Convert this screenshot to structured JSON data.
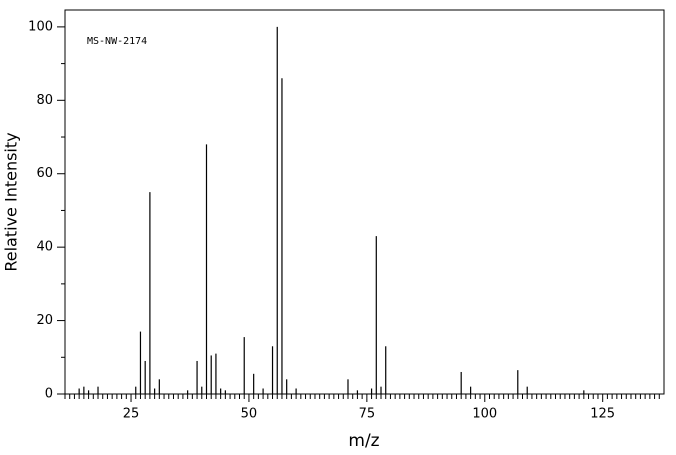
{
  "chart_data": {
    "type": "stem",
    "annotation": "MS-NW-2174",
    "xlabel": "m/z",
    "ylabel": "Relative Intensity",
    "x": [
      14,
      15,
      16,
      18,
      26,
      27,
      28,
      29,
      30,
      31,
      37,
      39,
      40,
      41,
      42,
      43,
      44,
      45,
      49,
      51,
      53,
      55,
      56,
      57,
      58,
      60,
      71,
      73,
      76,
      77,
      78,
      79,
      95,
      97,
      107,
      109,
      121
    ],
    "values": [
      1.5,
      2,
      1,
      2,
      2,
      17,
      9,
      55,
      1.5,
      4,
      1,
      9,
      2,
      68,
      10.5,
      11,
      1.5,
      1,
      15.5,
      5.5,
      1.5,
      13,
      100,
      86,
      4,
      1.5,
      4,
      1,
      1.5,
      43,
      2,
      13,
      6,
      2,
      6.5,
      2,
      1
    ],
    "color": "#000000",
    "xlim": [
      11,
      138
    ],
    "ylim": [
      0,
      104.6
    ],
    "xticks": [
      25,
      50,
      75,
      100,
      125
    ],
    "yticks": [
      0,
      20,
      40,
      60,
      80,
      100
    ],
    "xminorticks": [
      11,
      12,
      13,
      14,
      15,
      16,
      17,
      18,
      19,
      20,
      21,
      22,
      23,
      24,
      26,
      27,
      28,
      29,
      30,
      31,
      32,
      33,
      34,
      35,
      36,
      37,
      38,
      39,
      40,
      41,
      42,
      43,
      44,
      45,
      46,
      47,
      48,
      49,
      51,
      52,
      53,
      54,
      55,
      56,
      57,
      58,
      59,
      60,
      61,
      62,
      63,
      64,
      65,
      66,
      67,
      68,
      69,
      70,
      71,
      72,
      73,
      74,
      76,
      77,
      78,
      79,
      80,
      81,
      82,
      83,
      84,
      85,
      86,
      87,
      88,
      89,
      90,
      91,
      92,
      93,
      94,
      95,
      96,
      97,
      98,
      99,
      101,
      102,
      103,
      104,
      105,
      106,
      107,
      108,
      109,
      110,
      111,
      112,
      113,
      114,
      115,
      116,
      117,
      118,
      119,
      120,
      121,
      122,
      123,
      124,
      126,
      127,
      128,
      129,
      130,
      131,
      132,
      133,
      134,
      135,
      136,
      137
    ],
    "yminorticks": [
      10,
      30,
      50,
      70,
      90
    ]
  }
}
